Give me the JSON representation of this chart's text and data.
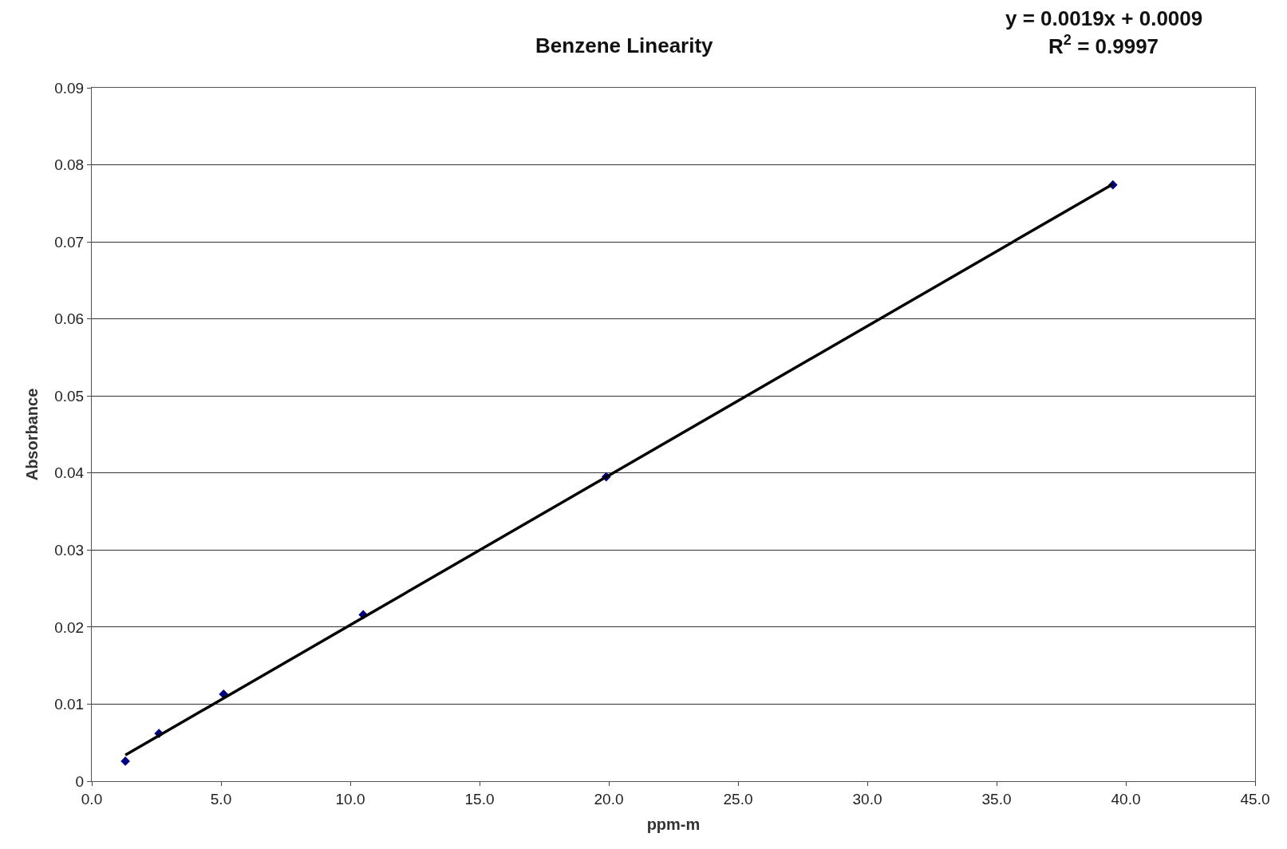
{
  "chart_data": {
    "type": "scatter",
    "title": "Benzene Linearity",
    "xlabel": "ppm-m",
    "ylabel": "Absorbance",
    "annotations": [
      "y = 0.0019x + 0.0009",
      "R$^{2}$ = 0.9997"
    ],
    "series": [
      {
        "color": "#000080",
        "marker": "diamond",
        "x": [
          1.3,
          2.6,
          5.1,
          10.5,
          19.9,
          39.5
        ],
        "values": [
          0.0026,
          0.0062,
          0.0113,
          0.0216,
          0.0395,
          0.0774
        ]
      },
      {
        "type": "line",
        "color": "#000000",
        "marker": "none",
        "line_style": "solid",
        "x": [
          1.3,
          39.5
        ],
        "values": [
          0.0034,
          0.0775
        ]
      }
    ],
    "xlim": [
      0,
      45
    ],
    "xticks": [
      {
        "value": 0,
        "label": "0.0"
      },
      {
        "value": 5,
        "label": "5.0"
      },
      {
        "value": 10,
        "label": "10.0"
      },
      {
        "value": 15,
        "label": "15.0"
      },
      {
        "value": 20,
        "label": "20.0"
      },
      {
        "value": 25,
        "label": "25.0"
      },
      {
        "value": 30,
        "label": "30.0"
      },
      {
        "value": 35,
        "label": "35.0"
      },
      {
        "value": 40,
        "label": "40.0"
      },
      {
        "value": 45,
        "label": "45.0"
      }
    ],
    "ylim": [
      0,
      0.09
    ],
    "yticks": [
      0,
      0.01,
      0.02,
      0.03,
      0.04,
      0.05,
      0.06,
      0.07,
      0.08,
      0.09
    ],
    "grid": "y",
    "legend": false
  }
}
